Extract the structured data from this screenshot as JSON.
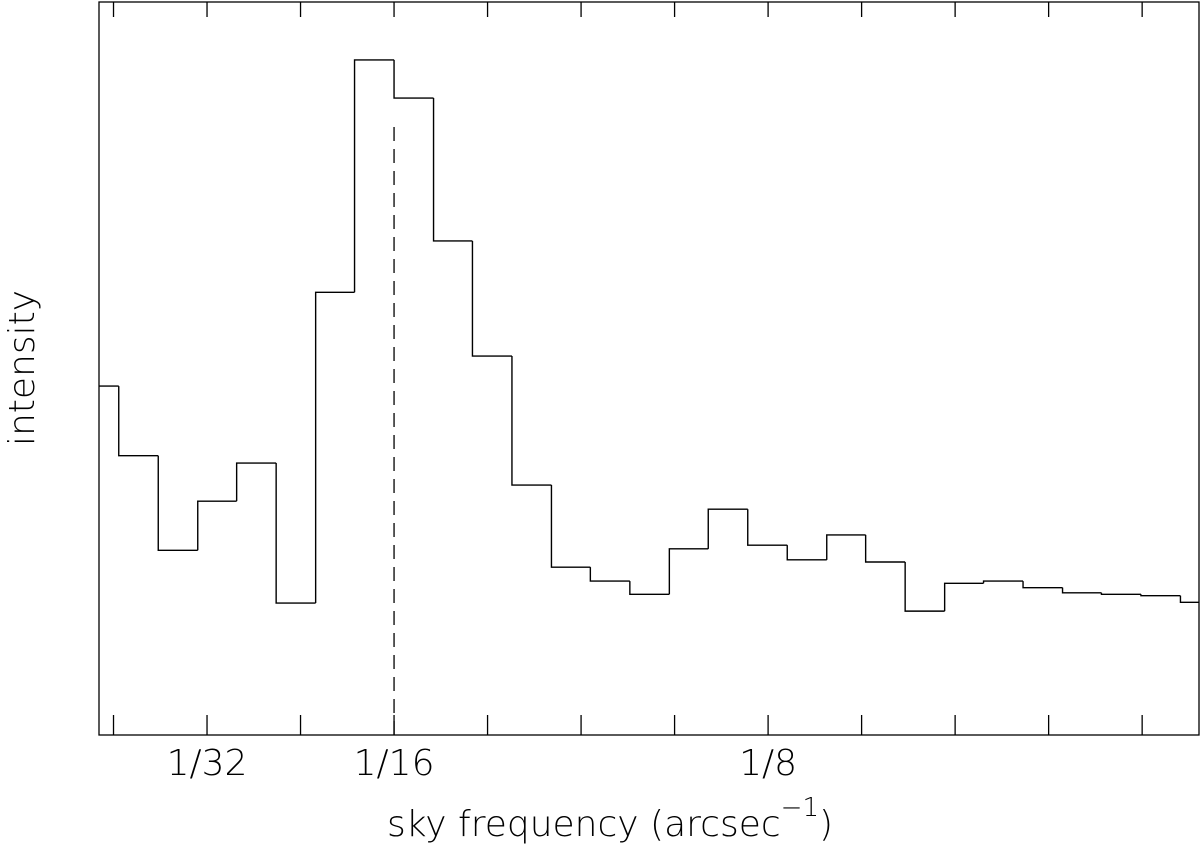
{
  "chart_data": {
    "type": "histogram",
    "xlabel": "sky frequency (arcsec",
    "xlabel_sup": "−1",
    "xlabel_end": ")",
    "ylabel": "intensity",
    "bins": [
      0.0132,
      0.0165,
      0.0231,
      0.0297,
      0.0362,
      0.0428,
      0.0494,
      0.0559,
      0.0625,
      0.0691,
      0.0756,
      0.0822,
      0.0888,
      0.0953,
      0.1019,
      0.1085,
      0.115,
      0.1216,
      0.1282,
      0.1348,
      0.1413,
      0.1479,
      0.1545,
      0.161,
      0.1676,
      0.1742,
      0.1807,
      0.1873,
      0.1939,
      0.197
    ],
    "values": [
      47.6,
      38.1,
      25.2,
      31.9,
      37.1,
      18.0,
      60.4,
      92.1,
      86.9,
      67.4,
      51.7,
      34.1,
      22.9,
      21.0,
      19.2,
      25.4,
      30.8,
      25.9,
      23.9,
      27.3,
      23.6,
      16.9,
      20.7,
      21.0,
      20.1,
      19.4,
      19.2,
      19.0,
      18.1
    ],
    "color": "#000000",
    "xlim": [
      0.0132,
      0.197
    ],
    "ylim": [
      0,
      100
    ],
    "xticks": [
      {
        "value": 0.03125,
        "label": "1/32"
      },
      {
        "value": 0.0625,
        "label": "1/16"
      },
      {
        "value": 0.125,
        "label": "1/8"
      }
    ],
    "xminorticks": [
      0.015625,
      0.046875,
      0.078125,
      0.09375,
      0.109375,
      0.140625,
      0.15625,
      0.171875,
      0.1875
    ],
    "vline": 0.0625
  }
}
